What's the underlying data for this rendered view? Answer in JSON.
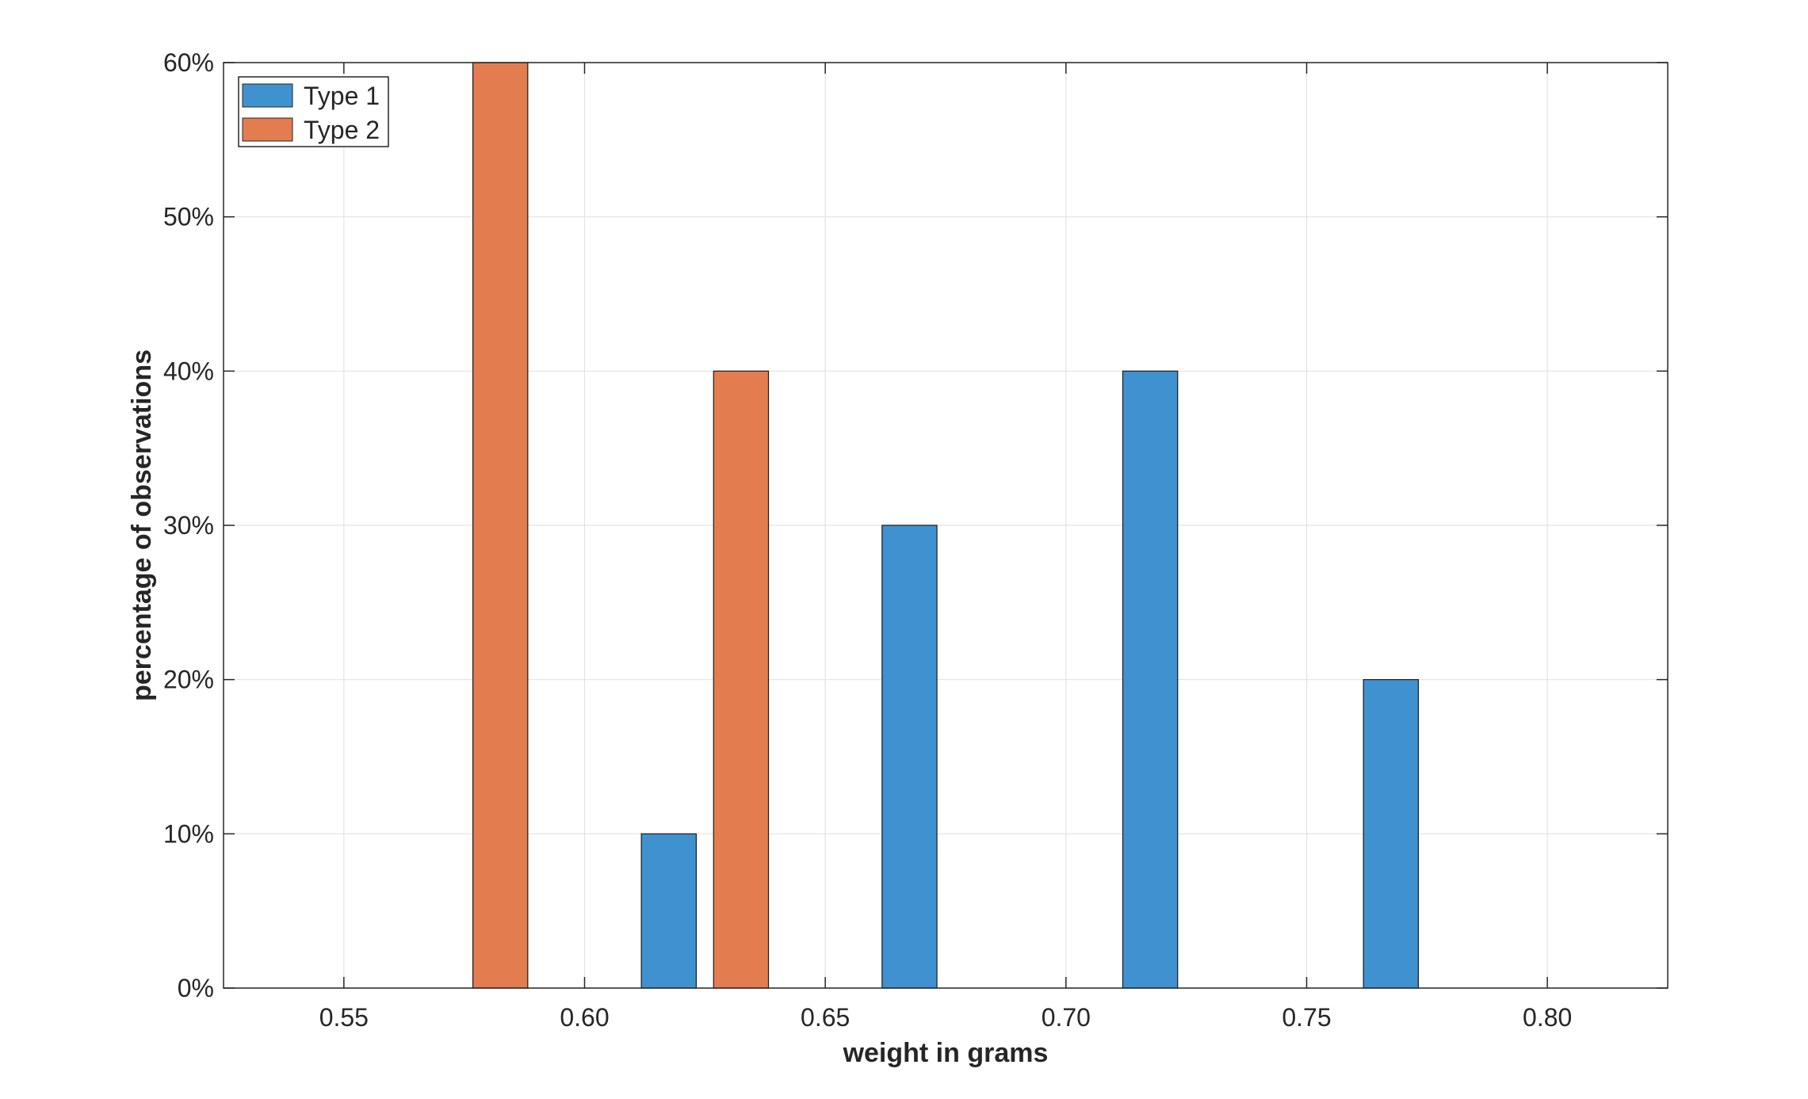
{
  "chart_data": {
    "type": "bar",
    "title": "",
    "xlabel": "weight in grams",
    "ylabel": "percentage of observations",
    "xlim": [
      0.525,
      0.825
    ],
    "ylim": [
      0,
      60
    ],
    "xticks": [
      0.55,
      0.6,
      0.65,
      0.7,
      0.75,
      0.8
    ],
    "xtick_labels": [
      "0.55",
      "0.60",
      "0.65",
      "0.70",
      "0.75",
      "0.80"
    ],
    "yticks": [
      0,
      10,
      20,
      30,
      40,
      50,
      60
    ],
    "ytick_labels": [
      "0%",
      "10%",
      "20%",
      "30%",
      "40%",
      "50%",
      "60%"
    ],
    "grid": true,
    "legend_position": "top-left",
    "bar_width": 0.0114,
    "series": [
      {
        "name": "Type 1",
        "color": "#3F92CF",
        "x": [
          0.6175,
          0.6675,
          0.7175,
          0.7675
        ],
        "values": [
          10,
          30,
          40,
          20
        ]
      },
      {
        "name": "Type 2",
        "color": "#E37D4F",
        "x": [
          0.5825,
          0.6325
        ],
        "values": [
          60,
          40
        ]
      }
    ]
  }
}
